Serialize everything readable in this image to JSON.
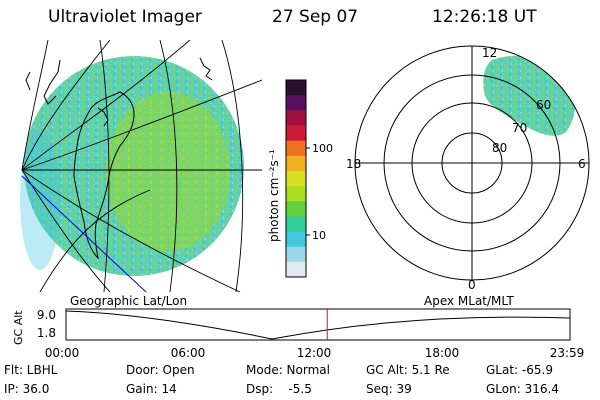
{
  "header": {
    "instrument": "Ultraviolet Imager",
    "date": "27 Sep 07",
    "time": "12:26:18 UT"
  },
  "colorbar": {
    "unit_label": "photon cm⁻²s⁻¹",
    "ticks": [
      "100",
      "10"
    ],
    "colors": [
      "#2a0f2e",
      "#5a1060",
      "#a01040",
      "#d0183a",
      "#f07020",
      "#f0b020",
      "#d8e020",
      "#a8e020",
      "#60d040",
      "#30d098",
      "#40c8e0",
      "#9ad8ec",
      "#e0e8f0"
    ]
  },
  "polar_plot": {
    "mlt_labels": {
      "top": "12",
      "left": "18",
      "right": "6",
      "bottom": "0"
    },
    "lat_labels": [
      "60",
      "70",
      "80"
    ]
  },
  "timeline": {
    "left_label": "Geographic Lat/Lon",
    "right_label": "Apex MLat/MLT",
    "y_title": "GC Alt",
    "y_ticks": [
      "9.0",
      "1.8"
    ],
    "x_ticks": [
      "00:00",
      "06:00",
      "12:00",
      "18:00",
      "23:59"
    ],
    "current_time_fraction": 0.5183
  },
  "footer": {
    "row1": [
      "Flt: LBHL",
      "Door: Open",
      "Mode: Normal",
      "GC Alt: 5.1 Re",
      "GLat: -65.9"
    ],
    "row2": [
      "IP: 36.0",
      "Gain: 14",
      "Dsp:    -5.5",
      "Seq: 39",
      "GLon: 316.4"
    ]
  },
  "colors": {
    "aurora_main": "#5fd6a6",
    "aurora_green": "#86d84a",
    "aurora_cyan": "#3fc6e6",
    "marker": "#ff0000",
    "track": "#0000ff"
  }
}
